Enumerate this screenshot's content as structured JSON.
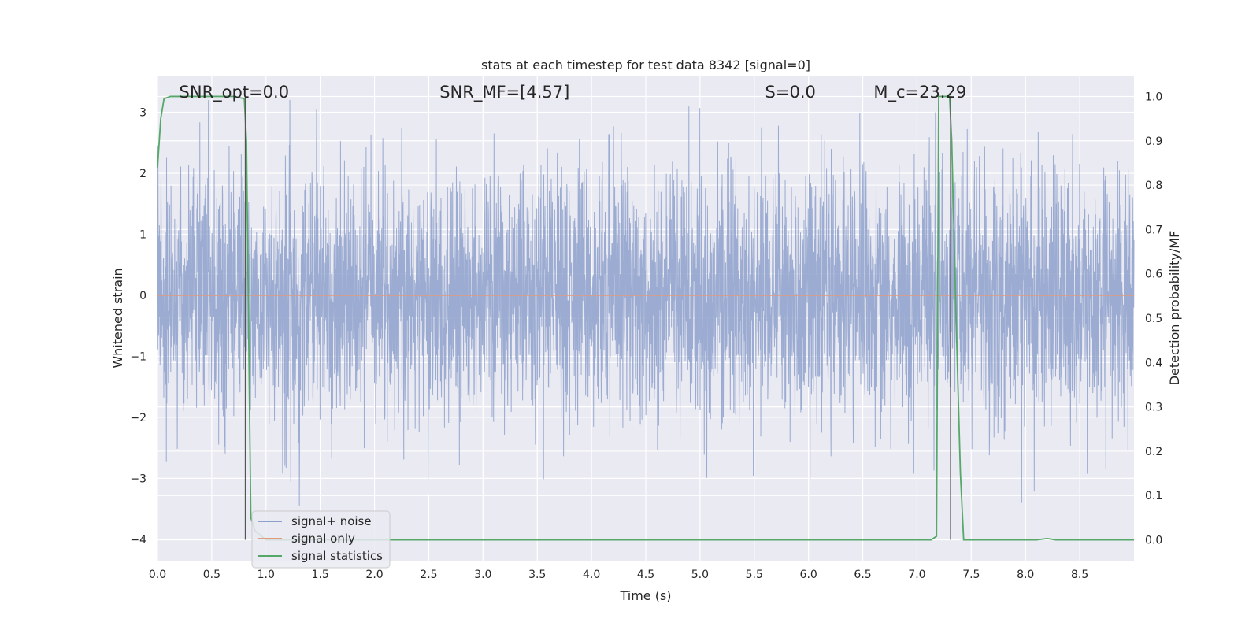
{
  "chart_data": {
    "type": "line",
    "title": "stats at each timestep for test data 8342 [signal=0]",
    "xlabel": "Time (s)",
    "ylabel_left": "Whitened strain",
    "ylabel_right": "Detection probability/MF",
    "xlim": [
      0,
      9
    ],
    "ylim_left": [
      -4.35,
      3.6
    ],
    "ylim_right": [
      -0.047,
      1.047
    ],
    "x_ticks": [
      "0.0",
      "0.5",
      "1.0",
      "1.5",
      "2.0",
      "2.5",
      "3.0",
      "3.5",
      "4.0",
      "4.5",
      "5.0",
      "5.5",
      "6.0",
      "6.5",
      "7.0",
      "7.5",
      "8.0",
      "8.5"
    ],
    "y_ticks_left": [
      "3",
      "2",
      "1",
      "0",
      "−1",
      "−2",
      "−3",
      "−4"
    ],
    "y_ticks_right": [
      "1.0",
      "0.9",
      "0.8",
      "0.7",
      "0.6",
      "0.5",
      "0.4",
      "0.3",
      "0.2",
      "0.1",
      "0.0"
    ],
    "grid": true,
    "legend_position": "lower-left",
    "annotations": [
      {
        "text": "SNR_opt=0.0",
        "x": 0.2
      },
      {
        "text": "SNR_MF=[4.57]",
        "x": 2.6
      },
      {
        "text": "S=0.0",
        "x": 5.6
      },
      {
        "text": "M_c=23.29",
        "x": 6.6
      }
    ],
    "vlines": [
      0.81,
      7.31
    ],
    "series": [
      {
        "name": "signal+ noise",
        "color": "#8da0cb",
        "axis": "left",
        "x_range": [
          0,
          9
        ],
        "stats": {
          "std": 1.0,
          "min": -4.0,
          "max": 3.2
        }
      },
      {
        "name": "signal only",
        "color": "#e49a7c",
        "axis": "left",
        "x": [
          0,
          9
        ],
        "y": [
          0,
          0
        ]
      },
      {
        "name": "signal statistics",
        "color": "#55a868",
        "axis": "right",
        "x": [
          0.0,
          0.03,
          0.06,
          0.12,
          0.25,
          0.4,
          0.55,
          0.7,
          0.8,
          0.82,
          0.86,
          0.9,
          1.0,
          2.0,
          3.0,
          4.0,
          5.0,
          6.0,
          7.0,
          7.13,
          7.18,
          7.19,
          7.2,
          7.25,
          7.3,
          7.32,
          7.36,
          7.4,
          7.43,
          7.6,
          8.0,
          8.1,
          8.2,
          8.28,
          8.5,
          9.0
        ],
        "y": [
          0.84,
          0.95,
          0.995,
          1.0,
          1.0,
          1.0,
          1.0,
          1.0,
          0.995,
          0.9,
          0.05,
          0.02,
          0.0,
          0.0,
          0.0,
          0.0,
          0.0,
          0.0,
          0.0,
          0.0,
          0.008,
          0.5,
          1.0,
          1.0,
          1.0,
          0.9,
          0.5,
          0.15,
          0.0,
          0.0,
          0.0,
          0.0,
          0.003,
          0.0,
          0.0,
          0.0
        ]
      }
    ]
  }
}
